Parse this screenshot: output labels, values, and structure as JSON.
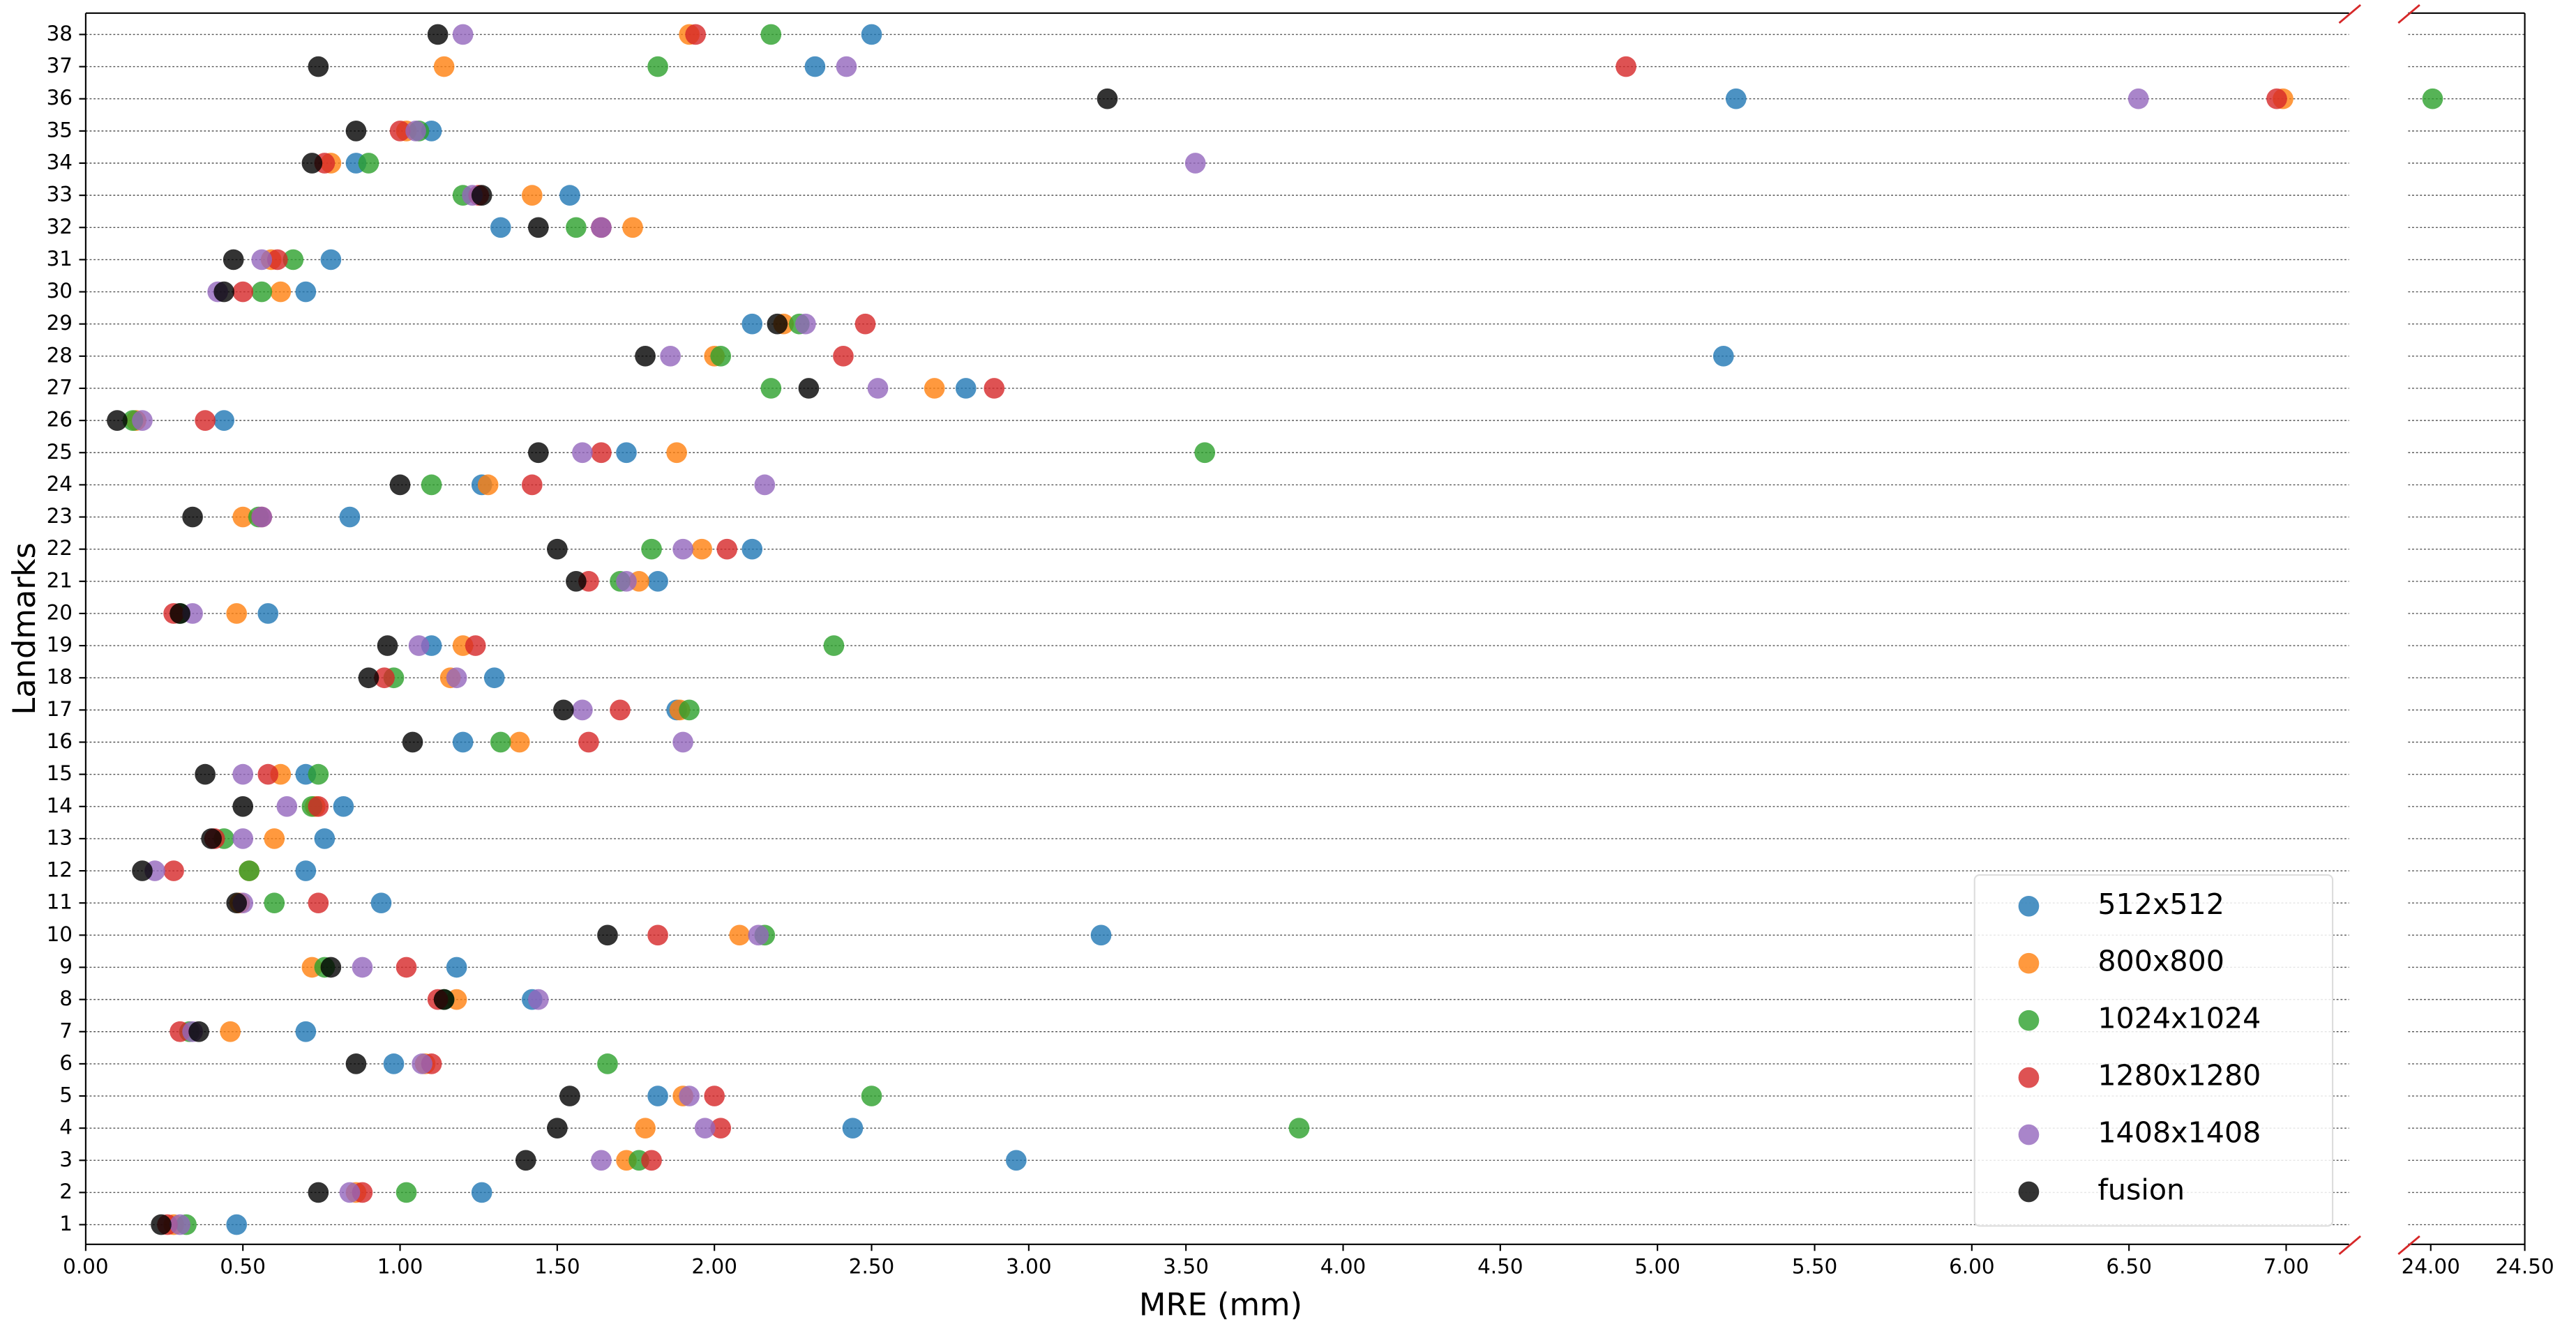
{
  "chart_data": {
    "type": "scatter",
    "x_label": "MRE (mm)",
    "y_label": "Landmarks",
    "categories": [
      "1",
      "2",
      "3",
      "4",
      "5",
      "6",
      "7",
      "8",
      "9",
      "10",
      "11",
      "12",
      "13",
      "14",
      "15",
      "16",
      "17",
      "18",
      "19",
      "20",
      "21",
      "22",
      "23",
      "24",
      "25",
      "26",
      "27",
      "28",
      "29",
      "30",
      "31",
      "32",
      "33",
      "34",
      "35",
      "36",
      "37",
      "38"
    ],
    "xlim": [
      0,
      7.2
    ],
    "xticks": [
      {
        "value": 0,
        "label": "0.00"
      },
      {
        "value": 0.5,
        "label": "0.50"
      },
      {
        "value": 1,
        "label": "1.00"
      },
      {
        "value": 1.5,
        "label": "1.50"
      },
      {
        "value": 2,
        "label": "2.00"
      },
      {
        "value": 2.5,
        "label": "2.50"
      },
      {
        "value": 3,
        "label": "3.00"
      },
      {
        "value": 3.5,
        "label": "3.50"
      },
      {
        "value": 4,
        "label": "4.00"
      },
      {
        "value": 4.5,
        "label": "4.50"
      },
      {
        "value": 5,
        "label": "5.00"
      },
      {
        "value": 5.5,
        "label": "5.50"
      },
      {
        "value": 6,
        "label": "6.00"
      },
      {
        "value": 6.5,
        "label": "6.50"
      },
      {
        "value": 7,
        "label": "7.00"
      }
    ],
    "xlim_break": [
      23.88,
      24.5
    ],
    "xticks_break": [
      {
        "value": 24,
        "label": "24.00"
      },
      {
        "value": 24.5,
        "label": "24.50"
      }
    ],
    "grid": true,
    "legend_position": "lower right",
    "series": [
      {
        "name": "512x512",
        "color": "#1f77b4",
        "values": [
          0.48,
          1.26,
          2.96,
          2.44,
          1.82,
          0.98,
          0.7,
          1.42,
          1.18,
          3.23,
          0.94,
          0.7,
          0.76,
          0.82,
          0.7,
          1.2,
          1.88,
          1.3,
          1.1,
          0.58,
          1.82,
          2.12,
          0.84,
          1.26,
          1.72,
          0.44,
          2.8,
          5.21,
          2.12,
          0.7,
          0.78,
          1.32,
          1.54,
          0.86,
          1.1,
          5.25,
          2.32,
          2.5
        ]
      },
      {
        "name": "800x800",
        "color": "#ff7f0e",
        "values": [
          0.28,
          0.86,
          1.72,
          1.78,
          1.9,
          1.08,
          0.46,
          1.18,
          0.72,
          2.08,
          0.49,
          0.52,
          0.6,
          0.73,
          0.62,
          1.38,
          1.89,
          1.16,
          1.2,
          0.48,
          1.76,
          1.96,
          0.5,
          1.28,
          1.88,
          0.16,
          2.7,
          2.0,
          2.22,
          0.62,
          0.59,
          1.74,
          1.42,
          0.78,
          1.02,
          6.99,
          1.14,
          1.92
        ]
      },
      {
        "name": "1024x1024",
        "color": "#2ca02c",
        "values": [
          0.32,
          1.02,
          1.76,
          3.86,
          2.5,
          1.66,
          0.33,
          1.14,
          0.76,
          2.16,
          0.6,
          0.52,
          0.44,
          0.72,
          0.74,
          1.32,
          1.92,
          0.98,
          2.38,
          0.3,
          1.7,
          1.8,
          0.55,
          1.1,
          3.56,
          0.15,
          2.18,
          2.02,
          2.27,
          0.56,
          0.66,
          1.56,
          1.2,
          0.9,
          1.06,
          24.01,
          1.82,
          2.18
        ]
      },
      {
        "name": "1280x1280",
        "color": "#d62728",
        "values": [
          0.26,
          0.88,
          1.8,
          2.02,
          2.0,
          1.1,
          0.3,
          1.12,
          1.02,
          1.82,
          0.74,
          0.28,
          0.41,
          0.74,
          0.58,
          1.6,
          1.7,
          0.95,
          1.24,
          0.28,
          1.6,
          2.04,
          0.56,
          1.42,
          1.64,
          0.38,
          2.89,
          2.41,
          2.48,
          0.5,
          0.61,
          1.64,
          1.25,
          0.76,
          1.0,
          6.97,
          4.9,
          1.94
        ]
      },
      {
        "name": "1408x1408",
        "color": "#9467bd",
        "values": [
          0.3,
          0.84,
          1.64,
          1.97,
          1.92,
          1.07,
          0.34,
          1.44,
          0.88,
          2.14,
          0.5,
          0.22,
          0.5,
          0.64,
          0.5,
          1.9,
          1.58,
          1.18,
          1.06,
          0.34,
          1.72,
          1.9,
          0.56,
          2.16,
          1.58,
          0.18,
          2.52,
          1.86,
          2.29,
          0.42,
          0.56,
          1.64,
          1.23,
          3.53,
          1.05,
          6.53,
          2.42,
          1.2
        ]
      },
      {
        "name": "fusion",
        "color": "#000000",
        "values": [
          0.24,
          0.74,
          1.4,
          1.5,
          1.54,
          0.86,
          0.36,
          1.14,
          0.78,
          1.66,
          0.48,
          0.18,
          0.4,
          0.5,
          0.38,
          1.04,
          1.52,
          0.9,
          0.96,
          0.3,
          1.56,
          1.5,
          0.34,
          1.0,
          1.44,
          0.1,
          2.3,
          1.78,
          2.2,
          0.44,
          0.47,
          1.44,
          1.26,
          0.72,
          0.86,
          3.25,
          0.74,
          1.12
        ]
      }
    ]
  }
}
